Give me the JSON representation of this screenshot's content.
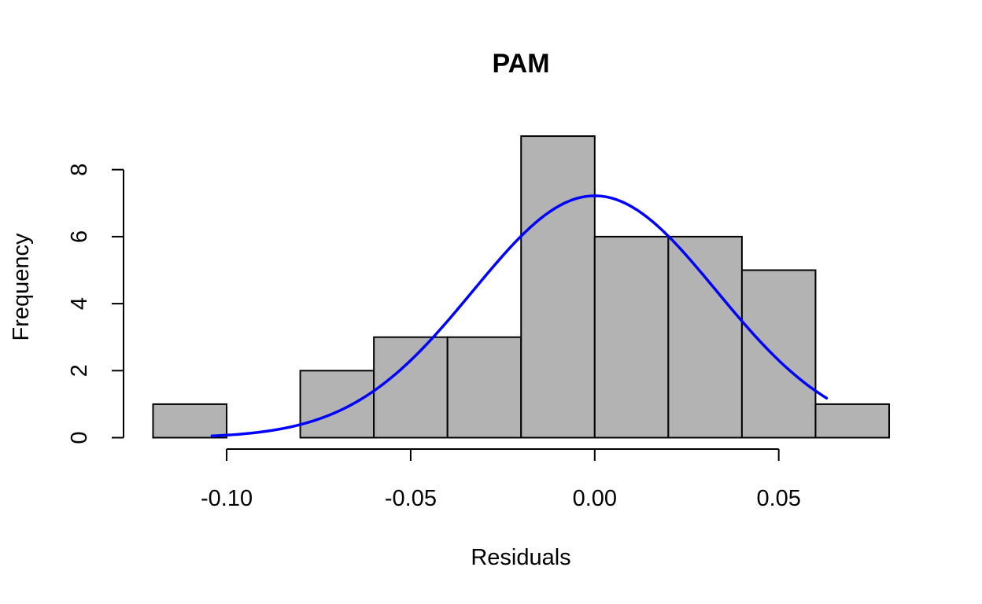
{
  "chart_data": {
    "type": "bar",
    "title": "PAM",
    "xlabel": "Residuals",
    "ylabel": "Frequency",
    "xlim": [
      -0.12,
      0.08
    ],
    "ylim": [
      0,
      9
    ],
    "bin_edges": [
      -0.12,
      -0.1,
      -0.08,
      -0.06,
      -0.04,
      -0.02,
      0.0,
      0.02,
      0.04,
      0.06,
      0.08
    ],
    "values": [
      1,
      0,
      2,
      3,
      3,
      9,
      6,
      6,
      5,
      1
    ],
    "x_ticks": [
      -0.1,
      -0.05,
      0.0,
      0.05
    ],
    "x_tick_labels": [
      "-0.10",
      "-0.05",
      "0.00",
      "0.05"
    ],
    "y_ticks": [
      0,
      2,
      4,
      6,
      8
    ],
    "y_tick_labels": [
      "0",
      "2",
      "4",
      "6",
      "8"
    ],
    "bar_color": "#b3b3b3",
    "bar_border_color": "#000000",
    "grid": false,
    "overlay": {
      "type": "line",
      "description": "normal density curve scaled to counts",
      "color": "#0000ff",
      "mean": 0.0,
      "sd": 0.0331,
      "peak": 7.22,
      "x_range": [
        -0.104,
        0.063
      ]
    }
  }
}
